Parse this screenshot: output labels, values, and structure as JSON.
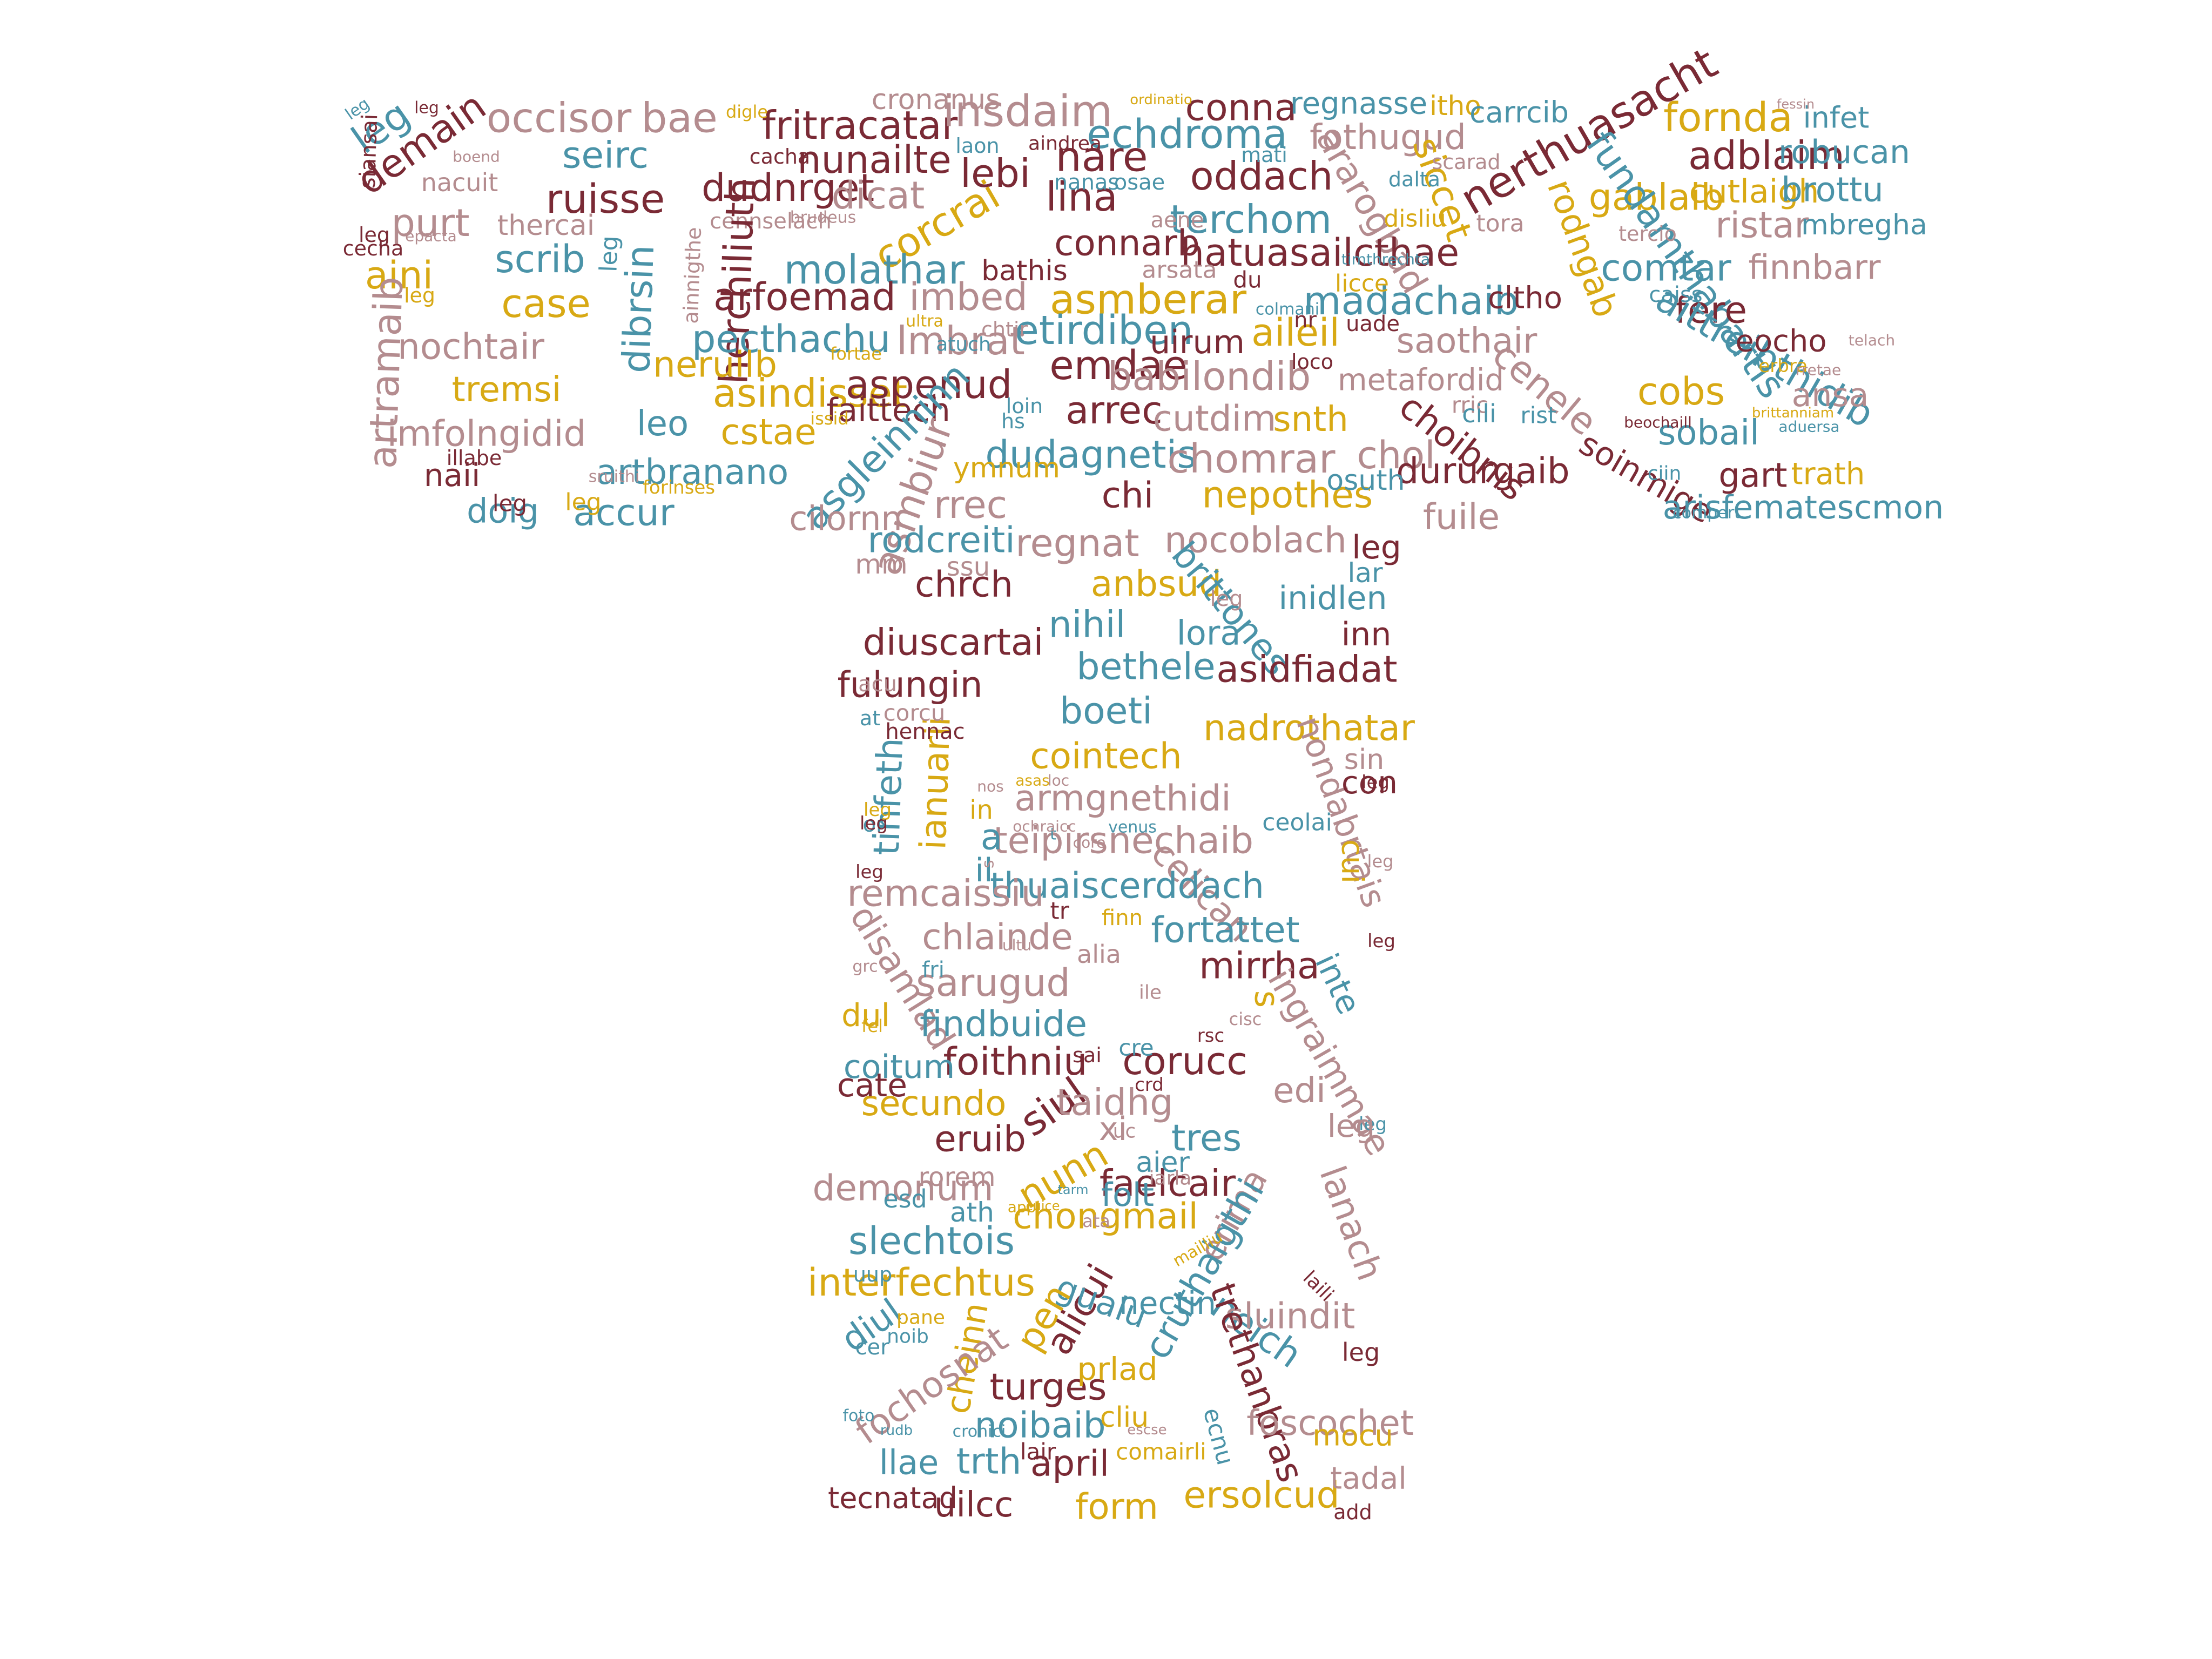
{
  "palette": {
    "maroon": "#7a2a35",
    "rose": "#b48c8f",
    "teal": "#4a93a8",
    "gold": "#d8a914"
  },
  "words": [
    {
      "text": "occisor",
      "color": "rose"
    },
    {
      "text": "bae",
      "color": "rose"
    },
    {
      "text": "fritracatar",
      "color": "maroon"
    },
    {
      "text": "cronanus",
      "color": "rose"
    },
    {
      "text": "insdaim",
      "color": "rose"
    },
    {
      "text": "conna",
      "color": "maroon"
    },
    {
      "text": "regnasse",
      "color": "teal"
    },
    {
      "text": "itho",
      "color": "gold"
    },
    {
      "text": "carrcib",
      "color": "teal"
    },
    {
      "text": "fornda",
      "color": "gold"
    },
    {
      "text": "infet",
      "color": "teal"
    },
    {
      "text": "leg",
      "color": "teal"
    },
    {
      "text": "demain",
      "color": "maroon"
    },
    {
      "text": "seirc",
      "color": "teal"
    },
    {
      "text": "nunailte",
      "color": "maroon"
    },
    {
      "text": "nare",
      "color": "maroon"
    },
    {
      "text": "echdroma",
      "color": "teal"
    },
    {
      "text": "fothugud",
      "color": "rose"
    },
    {
      "text": "nerthuasacht",
      "color": "maroon"
    },
    {
      "text": "adblaim",
      "color": "maroon"
    },
    {
      "text": "robucan",
      "color": "teal"
    },
    {
      "text": "nacuit",
      "color": "rose"
    },
    {
      "text": "lebi",
      "color": "maroon"
    },
    {
      "text": "oddach",
      "color": "maroon"
    },
    {
      "text": "siccet",
      "color": "gold"
    },
    {
      "text": "gablaib",
      "color": "gold"
    },
    {
      "text": "cutlaigh",
      "color": "gold"
    },
    {
      "text": "brottu",
      "color": "teal"
    },
    {
      "text": "ruisse",
      "color": "maroon"
    },
    {
      "text": "dudnrget",
      "color": "maroon"
    },
    {
      "text": "dicat",
      "color": "rose"
    },
    {
      "text": "lina",
      "color": "maroon"
    },
    {
      "text": "ararogbad",
      "color": "rose"
    },
    {
      "text": "ristar",
      "color": "rose"
    },
    {
      "text": "mbregha",
      "color": "teal"
    },
    {
      "text": "purt",
      "color": "rose"
    },
    {
      "text": "thercai",
      "color": "rose"
    },
    {
      "text": "corcrai",
      "color": "gold"
    },
    {
      "text": "terchom",
      "color": "teal"
    },
    {
      "text": "rodngab",
      "color": "gold"
    },
    {
      "text": "fundamthabartis",
      "color": "teal"
    },
    {
      "text": "cennselach",
      "color": "rose"
    },
    {
      "text": "aini",
      "color": "gold"
    },
    {
      "text": "scrib",
      "color": "teal"
    },
    {
      "text": "molathar",
      "color": "teal"
    },
    {
      "text": "connarb",
      "color": "maroon"
    },
    {
      "text": "hatuasailcthae",
      "color": "maroon"
    },
    {
      "text": "comtar",
      "color": "teal"
    },
    {
      "text": "finnbarr",
      "color": "rose"
    },
    {
      "text": "bathis",
      "color": "maroon"
    },
    {
      "text": "arsata",
      "color": "rose"
    },
    {
      "text": "case",
      "color": "gold"
    },
    {
      "text": "arfoemad",
      "color": "maroon"
    },
    {
      "text": "imbed",
      "color": "rose"
    },
    {
      "text": "asmberar",
      "color": "gold"
    },
    {
      "text": "madachaib",
      "color": "teal"
    },
    {
      "text": "cltho",
      "color": "maroon"
    },
    {
      "text": "fere",
      "color": "maroon"
    },
    {
      "text": "dibrsin",
      "color": "teal"
    },
    {
      "text": "herchiliuth",
      "color": "maroon"
    },
    {
      "text": "aittreibthidib",
      "color": "teal"
    },
    {
      "text": "artramaib",
      "color": "rose"
    },
    {
      "text": "nochtair",
      "color": "rose"
    },
    {
      "text": "pecthachu",
      "color": "teal"
    },
    {
      "text": "lmbrat",
      "color": "rose"
    },
    {
      "text": "etirdiben",
      "color": "teal"
    },
    {
      "text": "uirum",
      "color": "maroon"
    },
    {
      "text": "aileil",
      "color": "gold"
    },
    {
      "text": "saothair",
      "color": "rose"
    },
    {
      "text": "eocho",
      "color": "maroon"
    },
    {
      "text": "neruilb",
      "color": "gold"
    },
    {
      "text": "emdae",
      "color": "maroon"
    },
    {
      "text": "tremsi",
      "color": "gold"
    },
    {
      "text": "asindisset",
      "color": "gold"
    },
    {
      "text": "aspenud",
      "color": "maroon"
    },
    {
      "text": "babilondib",
      "color": "rose"
    },
    {
      "text": "metafordid",
      "color": "rose"
    },
    {
      "text": "cenele",
      "color": "rose"
    },
    {
      "text": "cobs",
      "color": "gold"
    },
    {
      "text": "ansa",
      "color": "rose"
    },
    {
      "text": "leo",
      "color": "teal"
    },
    {
      "text": "cstae",
      "color": "gold"
    },
    {
      "text": "faittech",
      "color": "maroon"
    },
    {
      "text": "arrec",
      "color": "maroon"
    },
    {
      "text": "cutdim",
      "color": "rose"
    },
    {
      "text": "snth",
      "color": "gold"
    },
    {
      "text": "choibnis",
      "color": "maroon"
    },
    {
      "text": "sobail",
      "color": "teal"
    },
    {
      "text": "imfolngidid",
      "color": "rose"
    },
    {
      "text": "asgleinninn",
      "color": "teal"
    },
    {
      "text": "dudagnetis",
      "color": "teal"
    },
    {
      "text": "chomrar",
      "color": "rose"
    },
    {
      "text": "chol",
      "color": "rose"
    },
    {
      "text": "dururgaib",
      "color": "maroon"
    },
    {
      "text": "soinmige",
      "color": "maroon"
    },
    {
      "text": "gart",
      "color": "maroon"
    },
    {
      "text": "trath",
      "color": "gold"
    },
    {
      "text": "naii",
      "color": "maroon"
    },
    {
      "text": "artbranano",
      "color": "teal"
    },
    {
      "text": "asmbiur",
      "color": "rose"
    },
    {
      "text": "ymnum",
      "color": "gold"
    },
    {
      "text": "chi",
      "color": "maroon"
    },
    {
      "text": "nepothes",
      "color": "gold"
    },
    {
      "text": "osuth",
      "color": "teal"
    },
    {
      "text": "doig",
      "color": "teal"
    },
    {
      "text": "accur",
      "color": "teal"
    },
    {
      "text": "cilornn",
      "color": "rose"
    },
    {
      "text": "rrec",
      "color": "rose"
    },
    {
      "text": "fuile",
      "color": "rose"
    },
    {
      "text": "arisfematescmon",
      "color": "teal"
    },
    {
      "text": "rodcreiti",
      "color": "teal"
    },
    {
      "text": "regnat",
      "color": "rose"
    },
    {
      "text": "nocoblach",
      "color": "rose"
    },
    {
      "text": "chrch",
      "color": "maroon"
    },
    {
      "text": "anbsud",
      "color": "gold"
    },
    {
      "text": "brittones",
      "color": "teal"
    },
    {
      "text": "inidlen",
      "color": "teal"
    },
    {
      "text": "nihil",
      "color": "teal"
    },
    {
      "text": "diuscartai",
      "color": "maroon"
    },
    {
      "text": "bethele",
      "color": "teal"
    },
    {
      "text": "asidfiadat",
      "color": "maroon"
    },
    {
      "text": "fulungin",
      "color": "maroon"
    },
    {
      "text": "boeti",
      "color": "teal"
    },
    {
      "text": "nadrothatar",
      "color": "gold"
    },
    {
      "text": "tinfeth",
      "color": "teal"
    },
    {
      "text": "ianuarii",
      "color": "gold"
    },
    {
      "text": "cointech",
      "color": "gold"
    },
    {
      "text": "armgnethidi",
      "color": "rose"
    },
    {
      "text": "teipirsnechaib",
      "color": "rose"
    },
    {
      "text": "nondabrtais",
      "color": "rose"
    },
    {
      "text": "celican",
      "color": "rose"
    },
    {
      "text": "thuaiscerddach",
      "color": "teal"
    },
    {
      "text": "remcaissiu",
      "color": "rose"
    },
    {
      "text": "chlainde",
      "color": "rose"
    },
    {
      "text": "fortattet",
      "color": "teal"
    },
    {
      "text": "disamlad",
      "color": "rose"
    },
    {
      "text": "mirrha",
      "color": "maroon"
    },
    {
      "text": "sarugud",
      "color": "rose"
    },
    {
      "text": "findbuide",
      "color": "teal"
    },
    {
      "text": "foithniu",
      "color": "maroon"
    },
    {
      "text": "corucc",
      "color": "maroon"
    },
    {
      "text": "coitum",
      "color": "teal"
    },
    {
      "text": "siul",
      "color": "maroon"
    },
    {
      "text": "ingraimmae",
      "color": "rose"
    },
    {
      "text": "taidhg",
      "color": "rose"
    },
    {
      "text": "secundo",
      "color": "gold"
    },
    {
      "text": "eruib",
      "color": "maroon"
    },
    {
      "text": "tres",
      "color": "teal"
    },
    {
      "text": "nunn",
      "color": "gold"
    },
    {
      "text": "demonum",
      "color": "rose"
    },
    {
      "text": "faelcair",
      "color": "maroon"
    },
    {
      "text": "erima",
      "color": "rose"
    },
    {
      "text": "chongmail",
      "color": "gold"
    },
    {
      "text": "lanach",
      "color": "rose"
    },
    {
      "text": "slechtois",
      "color": "teal"
    },
    {
      "text": "cruthaigthi",
      "color": "teal"
    },
    {
      "text": "interfechtus",
      "color": "gold"
    },
    {
      "text": "alicui",
      "color": "maroon"
    },
    {
      "text": "gualu",
      "color": "teal"
    },
    {
      "text": "pen",
      "color": "gold"
    },
    {
      "text": "neich",
      "color": "teal"
    },
    {
      "text": "sluindit",
      "color": "rose"
    },
    {
      "text": "diul",
      "color": "teal"
    },
    {
      "text": "cheinn",
      "color": "gold"
    },
    {
      "text": "fochosnat",
      "color": "rose"
    },
    {
      "text": "turges",
      "color": "maroon"
    },
    {
      "text": "trethanbras",
      "color": "maroon"
    },
    {
      "text": "noibaib",
      "color": "teal"
    },
    {
      "text": "foscochet",
      "color": "rose"
    },
    {
      "text": "llae",
      "color": "teal"
    },
    {
      "text": "trth",
      "color": "teal"
    },
    {
      "text": "april",
      "color": "maroon"
    },
    {
      "text": "ersolcud",
      "color": "gold"
    },
    {
      "text": "tadal",
      "color": "rose"
    },
    {
      "text": "uilcc",
      "color": "maroon"
    },
    {
      "text": "form",
      "color": "gold"
    },
    {
      "text": "tecnatad",
      "color": "maroon"
    },
    {
      "text": "lair",
      "color": "maroon"
    },
    {
      "text": "comairli",
      "color": "gold"
    },
    {
      "text": "mocu",
      "color": "gold"
    },
    {
      "text": "add",
      "color": "maroon"
    },
    {
      "text": "nectin",
      "color": "teal"
    },
    {
      "text": "prlad",
      "color": "gold"
    },
    {
      "text": "cliu",
      "color": "gold"
    },
    {
      "text": "ecnu",
      "color": "teal"
    },
    {
      "text": "folt",
      "color": "teal"
    },
    {
      "text": "s",
      "color": "gold"
    },
    {
      "text": "inte",
      "color": "teal"
    },
    {
      "text": "edi",
      "color": "rose"
    },
    {
      "text": "xi",
      "color": "rose"
    },
    {
      "text": "aier",
      "color": "teal"
    },
    {
      "text": "rorem",
      "color": "rose"
    },
    {
      "text": "ath",
      "color": "teal"
    },
    {
      "text": "esd",
      "color": "teal"
    },
    {
      "text": "cate",
      "color": "maroon"
    },
    {
      "text": "dul",
      "color": "gold"
    },
    {
      "text": "fri",
      "color": "teal"
    },
    {
      "text": "fel",
      "color": "gold"
    },
    {
      "text": "alia",
      "color": "rose"
    },
    {
      "text": "ile",
      "color": "rose"
    },
    {
      "text": "cre",
      "color": "teal"
    },
    {
      "text": "sai",
      "color": "maroon"
    },
    {
      "text": "finn",
      "color": "gold"
    },
    {
      "text": "tr",
      "color": "maroon"
    },
    {
      "text": "il",
      "color": "teal"
    },
    {
      "text": "a",
      "color": "teal"
    },
    {
      "text": "in",
      "color": "gold"
    },
    {
      "text": "at",
      "color": "teal"
    },
    {
      "text": "corcu",
      "color": "rose"
    },
    {
      "text": "acu",
      "color": "rose"
    },
    {
      "text": "mm",
      "color": "rose"
    },
    {
      "text": "ssu",
      "color": "rose"
    },
    {
      "text": "lora",
      "color": "teal"
    },
    {
      "text": "inn",
      "color": "maroon"
    },
    {
      "text": "lar",
      "color": "teal"
    },
    {
      "text": "sin",
      "color": "rose"
    },
    {
      "text": "cui",
      "color": "gold"
    },
    {
      "text": "con",
      "color": "maroon"
    },
    {
      "text": "ceolai",
      "color": "teal"
    },
    {
      "text": "nr",
      "color": "maroon"
    },
    {
      "text": "uade",
      "color": "maroon"
    },
    {
      "text": "rric",
      "color": "rose"
    },
    {
      "text": "cili",
      "color": "teal"
    },
    {
      "text": "rist",
      "color": "teal"
    },
    {
      "text": "tora",
      "color": "rose"
    },
    {
      "text": "disliu",
      "color": "gold"
    },
    {
      "text": "du",
      "color": "maroon"
    },
    {
      "text": "licce",
      "color": "gold"
    },
    {
      "text": "aene",
      "color": "rose"
    },
    {
      "text": "nanas",
      "color": "teal"
    },
    {
      "text": "osae",
      "color": "teal"
    },
    {
      "text": "mati",
      "color": "teal"
    },
    {
      "text": "aindrea",
      "color": "maroon"
    },
    {
      "text": "laon",
      "color": "teal"
    },
    {
      "text": "cacha",
      "color": "maroon"
    },
    {
      "text": "digle",
      "color": "gold"
    },
    {
      "text": "dalta",
      "color": "teal"
    },
    {
      "text": "scarad",
      "color": "rose"
    },
    {
      "text": "tercio",
      "color": "rose"
    },
    {
      "text": "caiss",
      "color": "teal"
    },
    {
      "text": "ciin",
      "color": "teal"
    },
    {
      "text": "erbra",
      "color": "gold"
    },
    {
      "text": "cecha",
      "color": "maroon"
    },
    {
      "text": "siansai",
      "color": "maroon"
    },
    {
      "text": "ainnigthe",
      "color": "rose"
    },
    {
      "text": "illabe",
      "color": "maroon"
    },
    {
      "text": "forinses",
      "color": "gold"
    },
    {
      "text": "hs",
      "color": "teal"
    },
    {
      "text": "loin",
      "color": "teal"
    },
    {
      "text": "atuch",
      "color": "teal"
    },
    {
      "text": "chtir",
      "color": "rose"
    },
    {
      "text": "loco",
      "color": "maroon"
    },
    {
      "text": "issid",
      "color": "gold"
    },
    {
      "text": "fortae",
      "color": "gold"
    },
    {
      "text": "ultra",
      "color": "gold"
    },
    {
      "text": "or",
      "color": "teal"
    },
    {
      "text": "grc",
      "color": "rose"
    },
    {
      "text": "ultu",
      "color": "rose"
    },
    {
      "text": "core",
      "color": "rose"
    },
    {
      "text": "venus",
      "color": "teal"
    },
    {
      "text": "loc",
      "color": "rose"
    },
    {
      "text": "asas",
      "color": "gold"
    },
    {
      "text": "nos",
      "color": "rose"
    },
    {
      "text": "hennac",
      "color": "maroon"
    },
    {
      "text": "uc",
      "color": "rose"
    },
    {
      "text": "crd",
      "color": "maroon"
    },
    {
      "text": "rsc",
      "color": "maroon"
    },
    {
      "text": "cisc",
      "color": "rose"
    },
    {
      "text": "iarla",
      "color": "rose"
    },
    {
      "text": "ata",
      "color": "rose"
    },
    {
      "text": "appi",
      "color": "gold"
    },
    {
      "text": "tarm",
      "color": "teal"
    },
    {
      "text": "cuice",
      "color": "gold"
    },
    {
      "text": "uup",
      "color": "teal"
    },
    {
      "text": "pane",
      "color": "gold"
    },
    {
      "text": "noib",
      "color": "teal"
    },
    {
      "text": "cer",
      "color": "teal"
    },
    {
      "text": "laili",
      "color": "maroon"
    },
    {
      "text": "mailliu",
      "color": "gold"
    },
    {
      "text": "cronici",
      "color": "teal"
    },
    {
      "text": "escse",
      "color": "rose"
    },
    {
      "text": "rudb",
      "color": "teal"
    },
    {
      "text": "foto",
      "color": "teal"
    },
    {
      "text": "s",
      "color": "rose"
    },
    {
      "text": "t",
      "color": "teal"
    },
    {
      "text": "ochraicc",
      "color": "rose"
    },
    {
      "text": "compert",
      "color": "teal"
    },
    {
      "text": "aduersa",
      "color": "teal"
    },
    {
      "text": "brittanniam",
      "color": "gold"
    },
    {
      "text": "sruithi",
      "color": "rose"
    },
    {
      "text": "boend",
      "color": "rose"
    },
    {
      "text": "epacta",
      "color": "rose"
    },
    {
      "text": "colmani",
      "color": "teal"
    },
    {
      "text": "timthrechta",
      "color": "teal"
    },
    {
      "text": "rretae",
      "color": "rose"
    },
    {
      "text": "telach",
      "color": "rose"
    },
    {
      "text": "beochaill",
      "color": "maroon"
    },
    {
      "text": "brudeus",
      "color": "rose"
    },
    {
      "text": "ordinatio",
      "color": "gold"
    },
    {
      "text": "fessin",
      "color": "rose"
    },
    {
      "text": "leg",
      "color": "teal"
    },
    {
      "text": "leg",
      "color": "maroon"
    },
    {
      "text": "leg",
      "color": "teal"
    },
    {
      "text": "leg",
      "color": "maroon"
    },
    {
      "text": "leg",
      "color": "gold"
    },
    {
      "text": "leg",
      "color": "maroon"
    },
    {
      "text": "leg",
      "color": "gold"
    },
    {
      "text": "leg",
      "color": "maroon"
    },
    {
      "text": "leg",
      "color": "rose"
    },
    {
      "text": "leg",
      "color": "maroon"
    },
    {
      "text": "leg",
      "color": "gold"
    },
    {
      "text": "leg",
      "color": "maroon"
    },
    {
      "text": "leg",
      "color": "maroon"
    },
    {
      "text": "leg",
      "color": "rose"
    },
    {
      "text": "leg",
      "color": "teal"
    },
    {
      "text": "leg",
      "color": "rose"
    },
    {
      "text": "leg",
      "color": "maroon"
    },
    {
      "text": "leg",
      "color": "maroon"
    },
    {
      "text": "leg",
      "color": "rose"
    },
    {
      "text": "leg",
      "color": "maroon"
    },
    {
      "text": "leg",
      "color": "rose"
    },
    {
      "text": "leg",
      "color": "teal"
    },
    {
      "text": "leg",
      "color": "gold"
    },
    {
      "text": "leg",
      "color": "rose"
    },
    {
      "text": "leg",
      "color": "maroon"
    }
  ]
}
